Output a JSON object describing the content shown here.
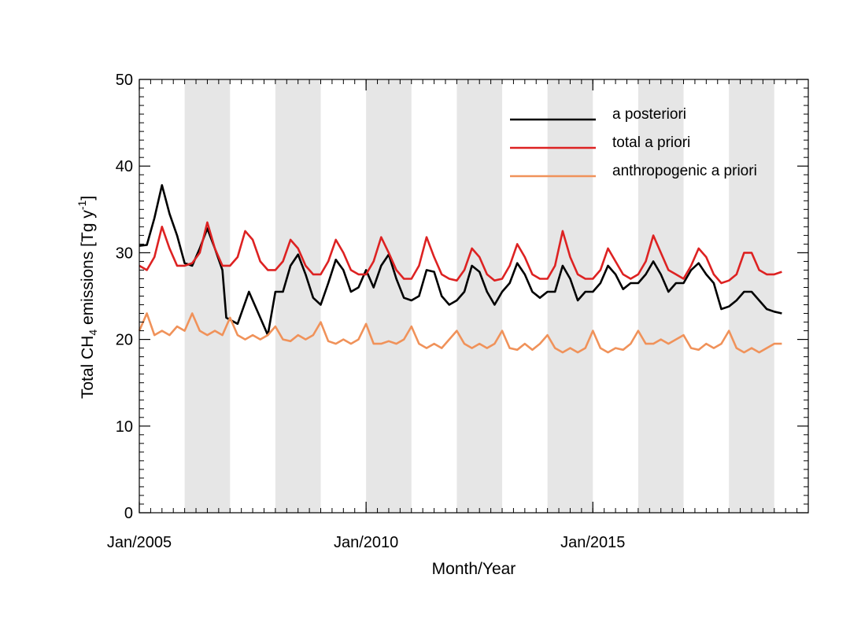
{
  "chart_data": {
    "type": "line",
    "title": "",
    "xlabel": "Month/Year",
    "ylabel_parts": {
      "prefix": "Total CH",
      "sub": "4",
      "middle": " emissions [Tg y",
      "sup": "-1",
      "suffix": "]"
    },
    "ylim": [
      0,
      50
    ],
    "xlim": [
      "2005-01",
      "2019-10"
    ],
    "y_ticks": [
      0,
      10,
      20,
      30,
      40,
      50
    ],
    "x_ticks": [
      {
        "date": "2005-01",
        "label": "Jan/2005"
      },
      {
        "date": "2010-01",
        "label": "Jan/2010"
      },
      {
        "date": "2015-01",
        "label": "Jan/2015"
      }
    ],
    "shaded_years": [
      2006,
      2008,
      2010,
      2012,
      2014,
      2016,
      2018
    ],
    "legend_position": "top-right",
    "grid": false,
    "series": [
      {
        "name": "a posteriori",
        "color": "#000000",
        "points": [
          [
            "2005-01",
            30.8
          ],
          [
            "2005-03",
            30.9
          ],
          [
            "2005-05",
            34.0
          ],
          [
            "2005-07",
            37.8
          ],
          [
            "2005-09",
            34.5
          ],
          [
            "2005-11",
            32.0
          ],
          [
            "2006-01",
            28.8
          ],
          [
            "2006-03",
            28.5
          ],
          [
            "2006-05",
            30.5
          ],
          [
            "2006-07",
            32.8
          ],
          [
            "2006-09",
            30.5
          ],
          [
            "2006-11",
            28.0
          ],
          [
            "2006-12",
            22.5
          ],
          [
            "2007-03",
            21.8
          ],
          [
            "2007-06",
            25.5
          ],
          [
            "2007-09",
            22.5
          ],
          [
            "2007-11",
            20.5
          ],
          [
            "2008-01",
            25.5
          ],
          [
            "2008-03",
            25.5
          ],
          [
            "2008-05",
            28.5
          ],
          [
            "2008-07",
            29.8
          ],
          [
            "2008-09",
            27.5
          ],
          [
            "2008-11",
            24.8
          ],
          [
            "2009-01",
            24.0
          ],
          [
            "2009-03",
            26.5
          ],
          [
            "2009-05",
            29.2
          ],
          [
            "2009-07",
            28.0
          ],
          [
            "2009-09",
            25.5
          ],
          [
            "2009-11",
            26.0
          ],
          [
            "2010-01",
            28.0
          ],
          [
            "2010-03",
            26.0
          ],
          [
            "2010-05",
            28.5
          ],
          [
            "2010-07",
            29.8
          ],
          [
            "2010-09",
            27.0
          ],
          [
            "2010-11",
            24.8
          ],
          [
            "2011-01",
            24.5
          ],
          [
            "2011-03",
            25.0
          ],
          [
            "2011-05",
            28.0
          ],
          [
            "2011-07",
            27.8
          ],
          [
            "2011-09",
            25.0
          ],
          [
            "2011-11",
            24.0
          ],
          [
            "2012-01",
            24.5
          ],
          [
            "2012-03",
            25.5
          ],
          [
            "2012-05",
            28.5
          ],
          [
            "2012-07",
            27.8
          ],
          [
            "2012-09",
            25.5
          ],
          [
            "2012-11",
            24.0
          ],
          [
            "2013-01",
            25.5
          ],
          [
            "2013-03",
            26.5
          ],
          [
            "2013-05",
            28.8
          ],
          [
            "2013-07",
            27.5
          ],
          [
            "2013-09",
            25.5
          ],
          [
            "2013-11",
            24.8
          ],
          [
            "2014-01",
            25.5
          ],
          [
            "2014-03",
            25.5
          ],
          [
            "2014-05",
            28.5
          ],
          [
            "2014-07",
            27.0
          ],
          [
            "2014-09",
            24.5
          ],
          [
            "2014-11",
            25.5
          ],
          [
            "2015-01",
            25.5
          ],
          [
            "2015-03",
            26.5
          ],
          [
            "2015-05",
            28.5
          ],
          [
            "2015-07",
            27.5
          ],
          [
            "2015-09",
            25.8
          ],
          [
            "2015-11",
            26.5
          ],
          [
            "2016-01",
            26.5
          ],
          [
            "2016-03",
            27.5
          ],
          [
            "2016-05",
            29.0
          ],
          [
            "2016-07",
            27.5
          ],
          [
            "2016-09",
            25.5
          ],
          [
            "2016-11",
            26.5
          ],
          [
            "2017-01",
            26.5
          ],
          [
            "2017-03",
            28.0
          ],
          [
            "2017-05",
            28.8
          ],
          [
            "2017-07",
            27.5
          ],
          [
            "2017-09",
            26.5
          ],
          [
            "2017-11",
            23.5
          ],
          [
            "2018-01",
            23.8
          ],
          [
            "2018-03",
            24.5
          ],
          [
            "2018-05",
            25.5
          ],
          [
            "2018-07",
            25.5
          ],
          [
            "2018-09",
            24.5
          ],
          [
            "2018-11",
            23.5
          ],
          [
            "2019-01",
            23.2
          ],
          [
            "2019-03",
            23.0
          ]
        ]
      },
      {
        "name": "total a priori",
        "color": "#dd2222",
        "points": [
          [
            "2005-01",
            28.5
          ],
          [
            "2005-03",
            28.0
          ],
          [
            "2005-05",
            29.5
          ],
          [
            "2005-07",
            33.0
          ],
          [
            "2005-09",
            30.5
          ],
          [
            "2005-11",
            28.5
          ],
          [
            "2006-01",
            28.5
          ],
          [
            "2006-03",
            28.8
          ],
          [
            "2006-05",
            30.0
          ],
          [
            "2006-07",
            33.5
          ],
          [
            "2006-09",
            30.5
          ],
          [
            "2006-11",
            28.5
          ],
          [
            "2007-01",
            28.5
          ],
          [
            "2007-03",
            29.5
          ],
          [
            "2007-05",
            32.5
          ],
          [
            "2007-07",
            31.5
          ],
          [
            "2007-09",
            29.0
          ],
          [
            "2007-11",
            28.0
          ],
          [
            "2008-01",
            28.0
          ],
          [
            "2008-03",
            29.0
          ],
          [
            "2008-05",
            31.5
          ],
          [
            "2008-07",
            30.5
          ],
          [
            "2008-09",
            28.5
          ],
          [
            "2008-11",
            27.5
          ],
          [
            "2009-01",
            27.5
          ],
          [
            "2009-03",
            29.0
          ],
          [
            "2009-05",
            31.5
          ],
          [
            "2009-07",
            30.0
          ],
          [
            "2009-09",
            28.0
          ],
          [
            "2009-11",
            27.5
          ],
          [
            "2010-01",
            27.5
          ],
          [
            "2010-03",
            29.0
          ],
          [
            "2010-05",
            31.8
          ],
          [
            "2010-07",
            30.0
          ],
          [
            "2010-09",
            28.0
          ],
          [
            "2010-11",
            27.0
          ],
          [
            "2011-01",
            27.0
          ],
          [
            "2011-03",
            28.5
          ],
          [
            "2011-05",
            31.8
          ],
          [
            "2011-07",
            29.5
          ],
          [
            "2011-09",
            27.5
          ],
          [
            "2011-11",
            27.0
          ],
          [
            "2012-01",
            26.8
          ],
          [
            "2012-03",
            28.0
          ],
          [
            "2012-05",
            30.5
          ],
          [
            "2012-07",
            29.5
          ],
          [
            "2012-09",
            27.5
          ],
          [
            "2012-11",
            26.8
          ],
          [
            "2013-01",
            27.0
          ],
          [
            "2013-03",
            28.5
          ],
          [
            "2013-05",
            31.0
          ],
          [
            "2013-07",
            29.5
          ],
          [
            "2013-09",
            27.5
          ],
          [
            "2013-11",
            27.0
          ],
          [
            "2014-01",
            27.0
          ],
          [
            "2014-03",
            28.5
          ],
          [
            "2014-05",
            32.5
          ],
          [
            "2014-07",
            29.5
          ],
          [
            "2014-09",
            27.5
          ],
          [
            "2014-11",
            27.0
          ],
          [
            "2015-01",
            27.0
          ],
          [
            "2015-03",
            28.0
          ],
          [
            "2015-05",
            30.5
          ],
          [
            "2015-07",
            29.0
          ],
          [
            "2015-09",
            27.5
          ],
          [
            "2015-11",
            27.0
          ],
          [
            "2016-01",
            27.5
          ],
          [
            "2016-03",
            29.0
          ],
          [
            "2016-05",
            32.0
          ],
          [
            "2016-07",
            30.0
          ],
          [
            "2016-09",
            28.0
          ],
          [
            "2016-11",
            27.5
          ],
          [
            "2017-01",
            27.0
          ],
          [
            "2017-03",
            28.5
          ],
          [
            "2017-05",
            30.5
          ],
          [
            "2017-07",
            29.5
          ],
          [
            "2017-09",
            27.5
          ],
          [
            "2017-11",
            26.5
          ],
          [
            "2018-01",
            26.8
          ],
          [
            "2018-03",
            27.5
          ],
          [
            "2018-05",
            30.0
          ],
          [
            "2018-07",
            30.0
          ],
          [
            "2018-09",
            28.0
          ],
          [
            "2018-11",
            27.5
          ],
          [
            "2019-01",
            27.5
          ],
          [
            "2019-03",
            27.8
          ]
        ]
      },
      {
        "name": "anthropogenic a priori",
        "color": "#f0925a",
        "points": [
          [
            "2005-01",
            21.0
          ],
          [
            "2005-03",
            23.0
          ],
          [
            "2005-05",
            20.5
          ],
          [
            "2005-07",
            21.0
          ],
          [
            "2005-09",
            20.5
          ],
          [
            "2005-11",
            21.5
          ],
          [
            "2006-01",
            21.0
          ],
          [
            "2006-03",
            23.0
          ],
          [
            "2006-05",
            21.0
          ],
          [
            "2006-07",
            20.5
          ],
          [
            "2006-09",
            21.0
          ],
          [
            "2006-11",
            20.5
          ],
          [
            "2007-01",
            22.5
          ],
          [
            "2007-03",
            20.5
          ],
          [
            "2007-05",
            20.0
          ],
          [
            "2007-07",
            20.5
          ],
          [
            "2007-09",
            20.0
          ],
          [
            "2007-11",
            20.5
          ],
          [
            "2008-01",
            21.5
          ],
          [
            "2008-03",
            20.0
          ],
          [
            "2008-05",
            19.8
          ],
          [
            "2008-07",
            20.5
          ],
          [
            "2008-09",
            20.0
          ],
          [
            "2008-11",
            20.5
          ],
          [
            "2009-01",
            22.0
          ],
          [
            "2009-03",
            19.8
          ],
          [
            "2009-05",
            19.5
          ],
          [
            "2009-07",
            20.0
          ],
          [
            "2009-09",
            19.5
          ],
          [
            "2009-11",
            20.0
          ],
          [
            "2010-01",
            21.8
          ],
          [
            "2010-03",
            19.5
          ],
          [
            "2010-05",
            19.5
          ],
          [
            "2010-07",
            19.8
          ],
          [
            "2010-09",
            19.5
          ],
          [
            "2010-11",
            20.0
          ],
          [
            "2011-01",
            21.5
          ],
          [
            "2011-03",
            19.5
          ],
          [
            "2011-05",
            19.0
          ],
          [
            "2011-07",
            19.5
          ],
          [
            "2011-09",
            19.0
          ],
          [
            "2011-11",
            20.0
          ],
          [
            "2012-01",
            21.0
          ],
          [
            "2012-03",
            19.5
          ],
          [
            "2012-05",
            19.0
          ],
          [
            "2012-07",
            19.5
          ],
          [
            "2012-09",
            19.0
          ],
          [
            "2012-11",
            19.5
          ],
          [
            "2013-01",
            21.0
          ],
          [
            "2013-03",
            19.0
          ],
          [
            "2013-05",
            18.8
          ],
          [
            "2013-07",
            19.5
          ],
          [
            "2013-09",
            18.8
          ],
          [
            "2013-11",
            19.5
          ],
          [
            "2014-01",
            20.5
          ],
          [
            "2014-03",
            19.0
          ],
          [
            "2014-05",
            18.5
          ],
          [
            "2014-07",
            19.0
          ],
          [
            "2014-09",
            18.5
          ],
          [
            "2014-11",
            19.0
          ],
          [
            "2015-01",
            21.0
          ],
          [
            "2015-03",
            19.0
          ],
          [
            "2015-05",
            18.5
          ],
          [
            "2015-07",
            19.0
          ],
          [
            "2015-09",
            18.8
          ],
          [
            "2015-11",
            19.5
          ],
          [
            "2016-01",
            21.0
          ],
          [
            "2016-03",
            19.5
          ],
          [
            "2016-05",
            19.5
          ],
          [
            "2016-07",
            20.0
          ],
          [
            "2016-09",
            19.5
          ],
          [
            "2016-11",
            20.0
          ],
          [
            "2017-01",
            20.5
          ],
          [
            "2017-03",
            19.0
          ],
          [
            "2017-05",
            18.8
          ],
          [
            "2017-07",
            19.5
          ],
          [
            "2017-09",
            19.0
          ],
          [
            "2017-11",
            19.5
          ],
          [
            "2018-01",
            21.0
          ],
          [
            "2018-03",
            19.0
          ],
          [
            "2018-05",
            18.5
          ],
          [
            "2018-07",
            19.0
          ],
          [
            "2018-09",
            18.5
          ],
          [
            "2018-11",
            19.0
          ],
          [
            "2019-01",
            19.5
          ],
          [
            "2019-03",
            19.5
          ]
        ]
      }
    ]
  }
}
